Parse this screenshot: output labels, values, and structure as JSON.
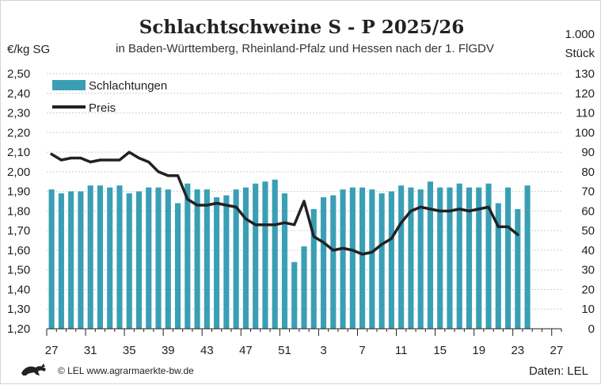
{
  "chart_data": {
    "type": "bar+line",
    "title": "Schlachtschweine S - P 2025/26",
    "subtitle": "in Baden-Württemberg, Rheinland-Pfalz und Hessen nach der 1. FlGDV",
    "y_left_unit": "€/kg SG",
    "y_right_unit_line1": "1.000",
    "y_right_unit_line2": "Stück",
    "y_left_range": [
      1.2,
      2.5
    ],
    "y_right_range": [
      0,
      130
    ],
    "y_left_ticks": [
      "2,50",
      "2,40",
      "2,30",
      "2,20",
      "2,10",
      "2,00",
      "1,90",
      "1,80",
      "1,70",
      "1,60",
      "1,50",
      "1,40",
      "1,30",
      "1,20"
    ],
    "y_right_ticks": [
      "130",
      "120",
      "110",
      "100",
      "90",
      "80",
      "70",
      "60",
      "50",
      "40",
      "30",
      "20",
      "10",
      "0"
    ],
    "x_ticks": [
      "27",
      "31",
      "35",
      "39",
      "43",
      "47",
      "51",
      "3",
      "7",
      "11",
      "15",
      "19",
      "23",
      "27"
    ],
    "grid": true,
    "legend_position": "top-left",
    "series": [
      {
        "name": "Schlachtungen",
        "kind": "bar",
        "axis": "right",
        "color": "#3a9fb4",
        "values": [
          71,
          69,
          70,
          70,
          73,
          73,
          72,
          73,
          69,
          70,
          72,
          72,
          71,
          64,
          74,
          71,
          71,
          67,
          68,
          71,
          72,
          74,
          75,
          76,
          69,
          34,
          42,
          61,
          67,
          68,
          71,
          72,
          72,
          71,
          69,
          70,
          73,
          72,
          71,
          75,
          72,
          72,
          74,
          72,
          72,
          74,
          64,
          72,
          61,
          73
        ]
      },
      {
        "name": "Preis",
        "kind": "line",
        "axis": "left",
        "color": "#222222",
        "values": [
          2.09,
          2.06,
          2.07,
          2.07,
          2.05,
          2.06,
          2.06,
          2.06,
          2.1,
          2.07,
          2.05,
          2.0,
          1.98,
          1.98,
          1.86,
          1.83,
          1.83,
          1.84,
          1.83,
          1.82,
          1.76,
          1.73,
          1.73,
          1.73,
          1.74,
          1.73,
          1.85,
          1.67,
          1.64,
          1.6,
          1.61,
          1.6,
          1.58,
          1.59,
          1.63,
          1.66,
          1.74,
          1.8,
          1.82,
          1.81,
          1.8,
          1.8,
          1.81,
          1.8,
          1.81,
          1.82,
          1.72,
          1.72,
          1.68
        ]
      }
    ]
  },
  "footer": {
    "copyright": "© LEL www.agrarmaerkte-bw.de",
    "source": "Daten: LEL",
    "logo": "lion-logo-icon"
  }
}
